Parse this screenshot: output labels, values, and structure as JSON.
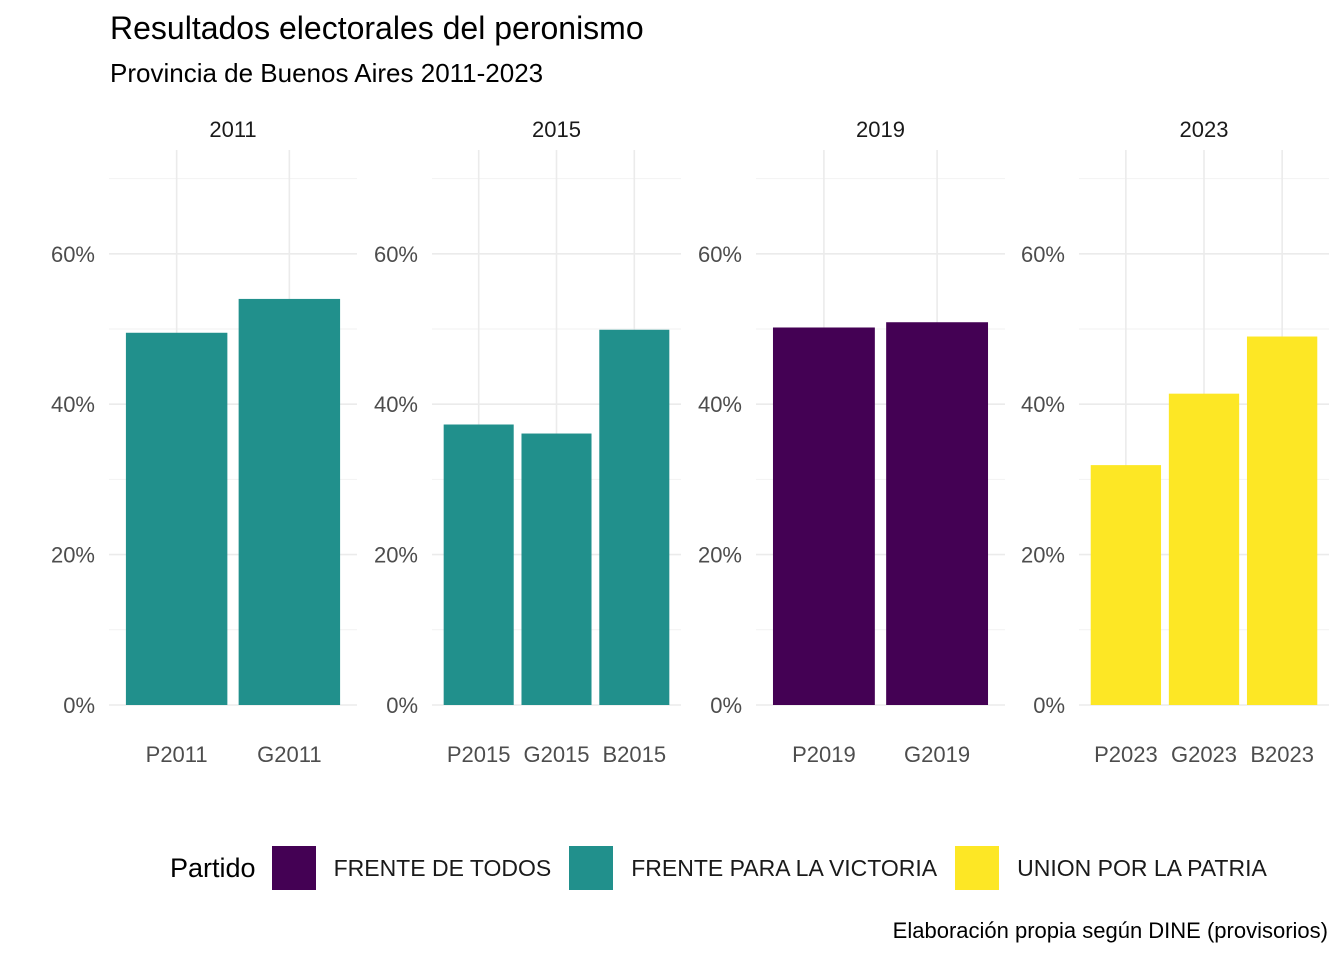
{
  "chart_data": {
    "type": "bar",
    "title": "Resultados electorales del peronismo",
    "subtitle": "Provincia de Buenos Aires 2011-2023",
    "caption": "Elaboración propia según DINE (provisorios)",
    "ylim": [
      0,
      0.72
    ],
    "y_ticks": [
      {
        "value": 0,
        "label": "0%"
      },
      {
        "value": 0.2,
        "label": "20%"
      },
      {
        "value": 0.4,
        "label": "40%"
      },
      {
        "value": 0.6,
        "label": "60%"
      }
    ],
    "grid": true,
    "legend": {
      "title": "Partido",
      "position": "bottom",
      "entries": [
        {
          "name": "FRENTE DE TODOS",
          "color": "#440154"
        },
        {
          "name": "FRENTE PARA LA VICTORIA",
          "color": "#21908C"
        },
        {
          "name": "UNION POR LA PATRIA",
          "color": "#FDE725"
        }
      ]
    },
    "panels": [
      {
        "facet": "2011",
        "categories": [
          "P2011",
          "G2011"
        ],
        "values": [
          0.495,
          0.54
        ],
        "series": "FRENTE PARA LA VICTORIA"
      },
      {
        "facet": "2015",
        "categories": [
          "P2015",
          "G2015",
          "B2015"
        ],
        "values": [
          0.373,
          0.361,
          0.499
        ],
        "series": "FRENTE PARA LA VICTORIA"
      },
      {
        "facet": "2019",
        "categories": [
          "P2019",
          "G2019"
        ],
        "values": [
          0.502,
          0.509
        ],
        "series": "FRENTE DE TODOS"
      },
      {
        "facet": "2023",
        "categories": [
          "P2023",
          "G2023",
          "B2023"
        ],
        "values": [
          0.319,
          0.414,
          0.49
        ],
        "series": "UNION POR LA PATRIA"
      }
    ]
  }
}
